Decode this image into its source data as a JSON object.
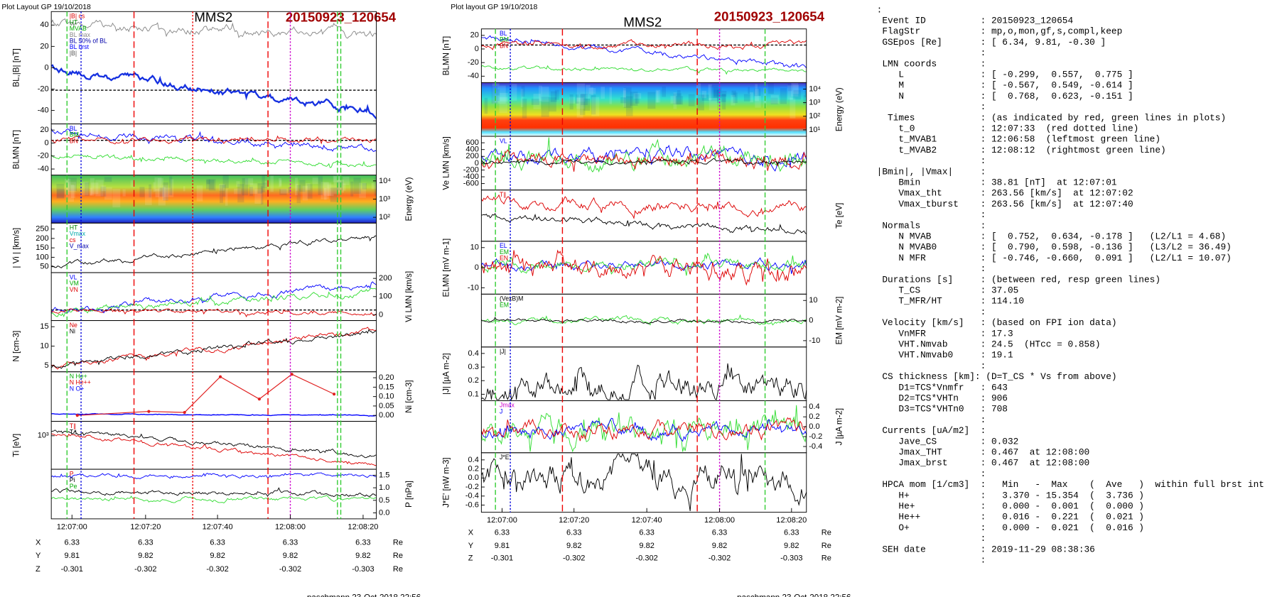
{
  "left": {
    "header": "Plot Layout GP 19/10/2018",
    "instrument": "MMS2",
    "event": "20150923_120654",
    "panels": [
      {
        "ylabel": "BL,|B| [nT]",
        "yticks": [
          "40",
          "20",
          "0",
          "-20",
          "-40"
        ],
        "legend": [
          "|B| cs",
          "HT",
          "MVAB",
          "BL max",
          "BL 50% of BL",
          "BL brst",
          "|B|"
        ]
      },
      {
        "ylabel": "BLMN [nT]",
        "yticks": [
          "20",
          "0",
          "-20",
          "-40"
        ],
        "legend": [
          "BL",
          "BM",
          "BN"
        ]
      },
      {
        "ylabel": "Energy (eV)",
        "yticks": [
          "10⁴",
          "10³",
          "10²"
        ],
        "legend": []
      },
      {
        "ylabel": "| Vi | [km/s]",
        "yticks": [
          "250",
          "200",
          "150",
          "100",
          "50"
        ],
        "legend": [
          "HT",
          "Vmax",
          "cs",
          "V_max"
        ]
      },
      {
        "ylabel": "Vi LMN [km/s]",
        "yticks": [
          "200",
          "100",
          "0"
        ],
        "legend": [
          "VL",
          "VM",
          "VN"
        ]
      },
      {
        "ylabel": "N [cm-3]",
        "yticks": [
          "15",
          "10",
          "5"
        ],
        "legend": [
          "Ne",
          "Ni"
        ]
      },
      {
        "ylabel": "Ni [cm-3]",
        "yticks": [
          "0.20",
          "0.15",
          "0.10",
          "0.05",
          "0.00"
        ],
        "legend": [
          "N  He+",
          "N  He++",
          "N  O+"
        ]
      },
      {
        "ylabel": "Ti [eV]",
        "yticks": [
          "10³"
        ],
        "legend": [
          "T∥",
          "T⊥"
        ]
      },
      {
        "ylabel": "P [nPa]",
        "yticks": [
          "1.5",
          "1.0",
          "0.5",
          "0.0"
        ],
        "legend": [
          "P",
          "Pi",
          "Pe"
        ]
      }
    ],
    "times": [
      "12:07:00",
      "12:07:20",
      "12:07:40",
      "12:08:00",
      "12:08:20"
    ],
    "ephemeris": [
      [
        "X",
        "6.33",
        "6.33",
        "6.33",
        "6.33",
        "6.33",
        "Re"
      ],
      [
        "Y",
        "9.81",
        "9.82",
        "9.82",
        "9.82",
        "9.82",
        "Re"
      ],
      [
        "Z",
        "-0.301",
        "-0.302",
        "-0.302",
        "-0.302",
        "-0.303",
        "Re"
      ]
    ],
    "footer": "paschmann 23-Oct-2018 22:56"
  },
  "middle": {
    "header": "Plot layout GP 19/10/2018",
    "instrument": "MMS2",
    "event": "20150923_120654",
    "panels": [
      {
        "ylabel": "BLMN [nT]",
        "yticks": [
          "20",
          "0",
          "-20",
          "-40"
        ],
        "legend": [
          "BL",
          "BM",
          "BN"
        ]
      },
      {
        "ylabel": "Energy (eV)",
        "yticks": [
          "10⁴",
          "10³",
          "10²",
          "10¹"
        ],
        "legend": []
      },
      {
        "ylabel": "Ve LMN [km/s]",
        "yticks": [
          "600",
          "400",
          "200",
          "0",
          "-200",
          "-400",
          "-600"
        ],
        "legend": [
          "VL"
        ]
      },
      {
        "ylabel": "Te [eV]",
        "yticks": [],
        "legend": [
          "T∥"
        ]
      },
      {
        "ylabel": "ELMN [mV m-1]",
        "yticks": [
          "10",
          "0",
          "-10"
        ],
        "legend": [
          "EL",
          "EM",
          "EN"
        ]
      },
      {
        "ylabel": "EM [mV m-2]",
        "yticks": [
          "10",
          "0",
          "-10"
        ],
        "legend": [
          "(VexB)M",
          "EM"
        ]
      },
      {
        "ylabel": "|J| [µA m-2]",
        "yticks": [
          "0.4",
          "0.3",
          "0.2",
          "0.1"
        ],
        "legend": [
          "|J|"
        ]
      },
      {
        "ylabel": "J [µA m-2]",
        "yticks": [
          "0.4",
          "0.2",
          "0.0",
          "-0.2",
          "-0.4"
        ],
        "legend": [
          "Jmax",
          "J"
        ]
      },
      {
        "ylabel": "J*E' [nW m-3]",
        "yticks": [
          "0.4",
          "0.2",
          "0.0",
          "-0.2",
          "-0.4",
          "-0.6"
        ],
        "legend": [
          "J*E'"
        ]
      }
    ],
    "times": [
      "12:07:00",
      "12:07:20",
      "12:07:40",
      "12:08:00",
      "12:08:20"
    ],
    "ephemeris": [
      [
        "X",
        "6.33",
        "6.33",
        "6.33",
        "6.33",
        "6.33",
        "Re"
      ],
      [
        "Y",
        "9.81",
        "9.82",
        "9.82",
        "9.82",
        "9.82",
        "Re"
      ],
      [
        "Z",
        "-0.301",
        "-0.302",
        "-0.302",
        "-0.302",
        "-0.303",
        "Re"
      ]
    ],
    "footer": "paschmann 23-Oct-2018 22:56"
  },
  "summary": {
    "lines": [
      ":",
      " Event ID          : 20150923_120654",
      " FlagStr           : mp,o,mon,gf,s,compl,keep",
      " GSEpos [Re]       : [ 6.34, 9.81, -0.30 ]",
      "                   :",
      " LMN coords        :",
      "    L              : [ -0.299,  0.557,  0.775 ]",
      "    M              : [ -0.567,  0.549, -0.614 ]",
      "    N              : [  0.768,  0.623, -0.151 ]",
      "                   :",
      "  Times            : (as indicated by red, green lines in plots)",
      "    t_0            : 12:07:33  (red dotted line)",
      "    t_MVAB1        : 12:06:58  (leftmost green line)",
      "    t_MVAB2        : 12:08:12  (rightmost green line)",
      "                   :",
      "|Bmin|, |Vmax|     :",
      "    Bmin           : 38.81 [nT]  at 12:07:01",
      "    Vmax_tht       : 263.56 [km/s]  at 12:07:02",
      "    Vmax_tburst    : 263.56 [km/s]  at 12:07:40",
      "                   :",
      " Normals           :",
      "    N MVAB         : [  0.752,  0.634, -0.178 ]   (L2/L1 = 4.68)",
      "    N MVAB0        : [  0.790,  0.598, -0.136 ]   (L3/L2 = 36.49)",
      "    N MFR          : [ -0.746, -0.660,  0.091 ]   (L2/L1 = 10.07)",
      "                   :",
      " Durations [s]     : (between red, resp green lines)",
      "    T_CS           : 37.05",
      "    T_MFR/HT       : 114.10",
      "                   :",
      " Velocity [km/s]   : (based on FPI ion data)",
      "    VnMFR          : 17.3",
      "    VHT.Nmvab      : 24.5  (HTcc = 0.858)",
      "    VHT.Nmvab0     : 19.1",
      "                   :",
      " CS thickness [km]: (D=T_CS * Vs from above)",
      "    D1=TCS*Vnmfr   : 643",
      "    D2=TCS*VHTn    : 906",
      "    D3=TCS*VHTn0   : 708",
      "                   :",
      " Currents [uA/m2]  :",
      "    Jave_CS        : 0.032",
      "    Jmax_THT       : 0.467  at 12:08:00",
      "    Jmax_brst      : 0.467  at 12:08:00",
      "                   :",
      " HPCA mom [1/cm3]  :   Min   -  Max    (  Ave   )  within full brst int",
      "    H+             :   3.370 - 15.354  (  3.736 )",
      "    He+            :   0.000 -  0.001  (  0.000 )",
      "    He++           :   0.016 -  0.221  (  0.021 )",
      "    O+             :   0.000 -  0.021  (  0.016 )",
      "                   :",
      " SEH date          : 2019-11-29 08:38:36",
      "                   :"
    ]
  }
}
